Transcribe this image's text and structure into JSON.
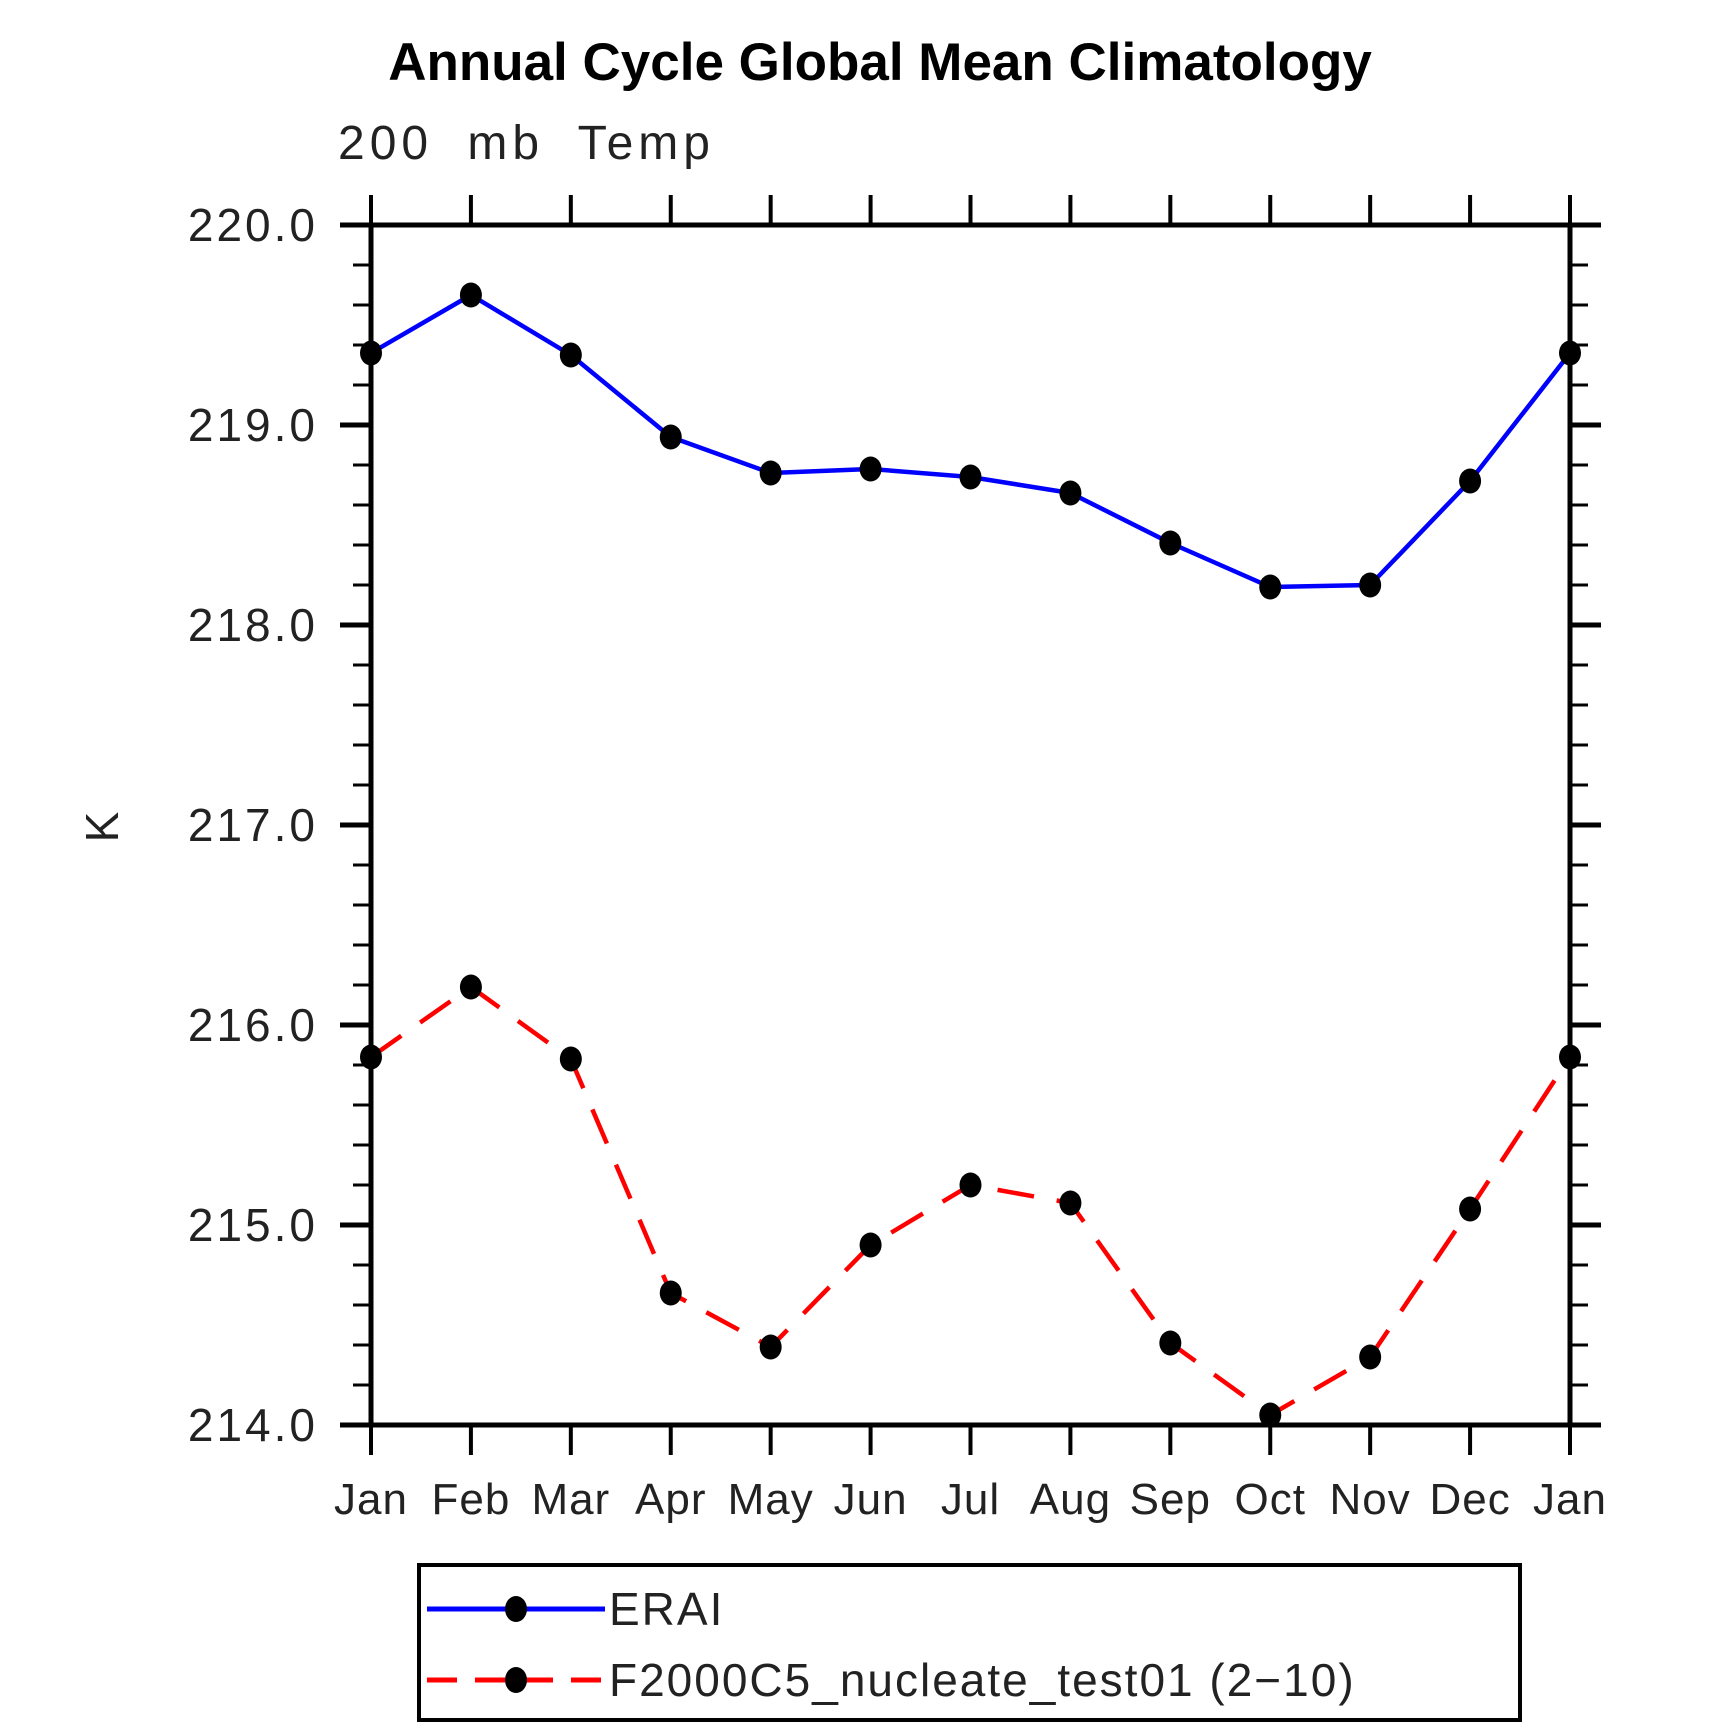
{
  "page": {
    "title": "Annual Cycle Global Mean Climatology"
  },
  "chart_data": {
    "type": "line",
    "title": "Annual Cycle Global Mean Climatology",
    "subtitle": "200 mb Temp",
    "xlabel": "",
    "ylabel": "K",
    "x_categories": [
      "Jan",
      "Feb",
      "Mar",
      "Apr",
      "May",
      "Jun",
      "Jul",
      "Aug",
      "Sep",
      "Oct",
      "Nov",
      "Dec",
      "Jan"
    ],
    "ylim": [
      214.0,
      220.0
    ],
    "ytick_values": [
      220.0,
      219.0,
      218.0,
      217.0,
      216.0,
      215.0,
      214.0
    ],
    "ytick_labels": [
      "220.0",
      "219.0",
      "218.0",
      "217.0",
      "216.0",
      "215.0",
      "214.0"
    ],
    "y_minor_step": 0.2,
    "grid": false,
    "legend_position": "bottom",
    "marker": "filled-circle",
    "marker_color": "#000000",
    "frame_color": "#000000",
    "series": [
      {
        "name": "ERAI",
        "color": "#0000ff",
        "line_style": "solid",
        "values": [
          219.36,
          219.65,
          219.35,
          218.94,
          218.76,
          218.78,
          218.74,
          218.66,
          218.41,
          218.19,
          218.2,
          218.72,
          219.36
        ]
      },
      {
        "name": "F2000C5_nucleate_test01 (2−10)",
        "color": "#ff0000",
        "line_style": "dashed",
        "values": [
          215.84,
          216.19,
          215.83,
          214.66,
          214.39,
          214.9,
          215.2,
          215.11,
          214.41,
          214.05,
          214.34,
          215.08,
          215.84
        ]
      }
    ]
  }
}
